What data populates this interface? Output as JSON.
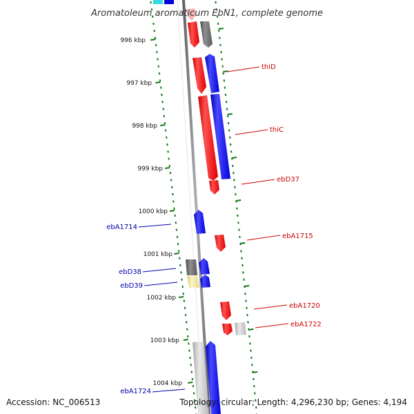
{
  "title": "Aromatoleum aromaticum EbN1, complete genome",
  "footer": {
    "accession": "Accession: NC_006513",
    "topology": "Topology: circular; Length: 4,296,230 bp; Genes: 4,194"
  },
  "colors": {
    "forward": "#ff0000",
    "reverse": "#0000ff",
    "unknown": "#6e6e6e",
    "pseudo": "#bdbdbd",
    "yellow": "#efe59a",
    "label_forward": "#cc0000",
    "label_reverse": "#0000aa",
    "ticks": "#117711"
  },
  "scale_labels": [
    "996 kbp",
    "997 kbp",
    "998 kbp",
    "999 kbp",
    "1000 kbp",
    "1001 kbp",
    "1002 kbp",
    "1003 kbp",
    "1004 kbp"
  ],
  "gene_labels": [
    "thiD",
    "thiC",
    "ebD37",
    "ebA1715",
    "ebA1720",
    "ebA1722",
    "ebA1714",
    "ebD38",
    "ebD39",
    "ebA1724"
  ]
}
